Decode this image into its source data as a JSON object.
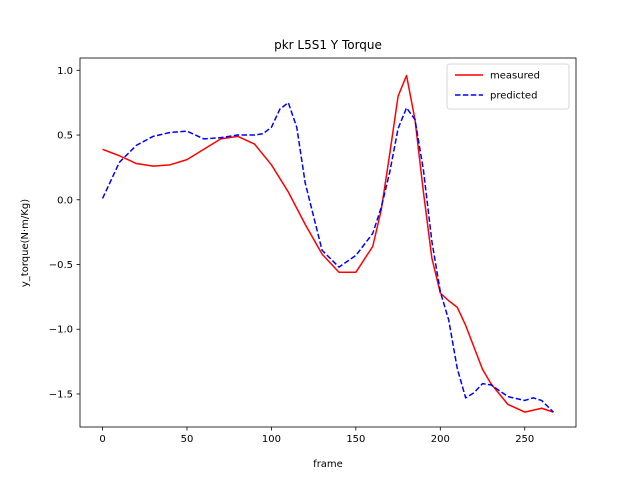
{
  "chart_data": {
    "type": "line",
    "title": "pkr L5S1 Y Torque",
    "xlabel": "frame",
    "ylabel": "y_torque(N·m/Kg)",
    "xlim": [
      -13.35,
      280.35
    ],
    "ylim": [
      -1.755,
      1.095
    ],
    "xticks": [
      0,
      50,
      100,
      150,
      200,
      250
    ],
    "xtick_labels": [
      "0",
      "50",
      "100",
      "150",
      "200",
      "250"
    ],
    "yticks": [
      1.0,
      0.5,
      0.0,
      -0.5,
      -1.0,
      -1.5
    ],
    "ytick_labels": [
      "1.0",
      "0.5",
      "0.0",
      "−0.5",
      "−1.0",
      "−1.5"
    ],
    "grid": false,
    "legend": "top-right",
    "series": [
      {
        "name": "measured",
        "color": "#ff0000",
        "style": "solid",
        "x": [
          0,
          10,
          20,
          30,
          40,
          50,
          60,
          70,
          80,
          90,
          100,
          110,
          120,
          130,
          140,
          150,
          160,
          165,
          170,
          175,
          180,
          185,
          190,
          195,
          200,
          205,
          210,
          215,
          220,
          225,
          230,
          240,
          250,
          260,
          267
        ],
        "y": [
          0.39,
          0.34,
          0.28,
          0.26,
          0.27,
          0.31,
          0.39,
          0.47,
          0.49,
          0.43,
          0.27,
          0.06,
          -0.19,
          -0.42,
          -0.56,
          -0.56,
          -0.36,
          -0.08,
          0.35,
          0.8,
          0.96,
          0.62,
          0.06,
          -0.45,
          -0.72,
          -0.78,
          -0.83,
          -0.97,
          -1.14,
          -1.31,
          -1.42,
          -1.58,
          -1.64,
          -1.61,
          -1.64
        ]
      },
      {
        "name": "predicted",
        "color": "#0000ff",
        "style": "dashed",
        "x": [
          0,
          10,
          20,
          30,
          40,
          50,
          60,
          70,
          80,
          90,
          95,
          100,
          105,
          110,
          115,
          120,
          130,
          140,
          150,
          160,
          165,
          170,
          175,
          180,
          185,
          190,
          195,
          200,
          205,
          210,
          215,
          220,
          225,
          230,
          240,
          250,
          255,
          260,
          267
        ],
        "y": [
          0.01,
          0.29,
          0.42,
          0.49,
          0.52,
          0.53,
          0.47,
          0.48,
          0.5,
          0.5,
          0.51,
          0.56,
          0.7,
          0.75,
          0.56,
          0.13,
          -0.39,
          -0.52,
          -0.43,
          -0.26,
          -0.06,
          0.21,
          0.55,
          0.71,
          0.62,
          0.23,
          -0.32,
          -0.71,
          -0.93,
          -1.3,
          -1.53,
          -1.49,
          -1.42,
          -1.43,
          -1.52,
          -1.55,
          -1.53,
          -1.55,
          -1.64
        ]
      }
    ]
  }
}
